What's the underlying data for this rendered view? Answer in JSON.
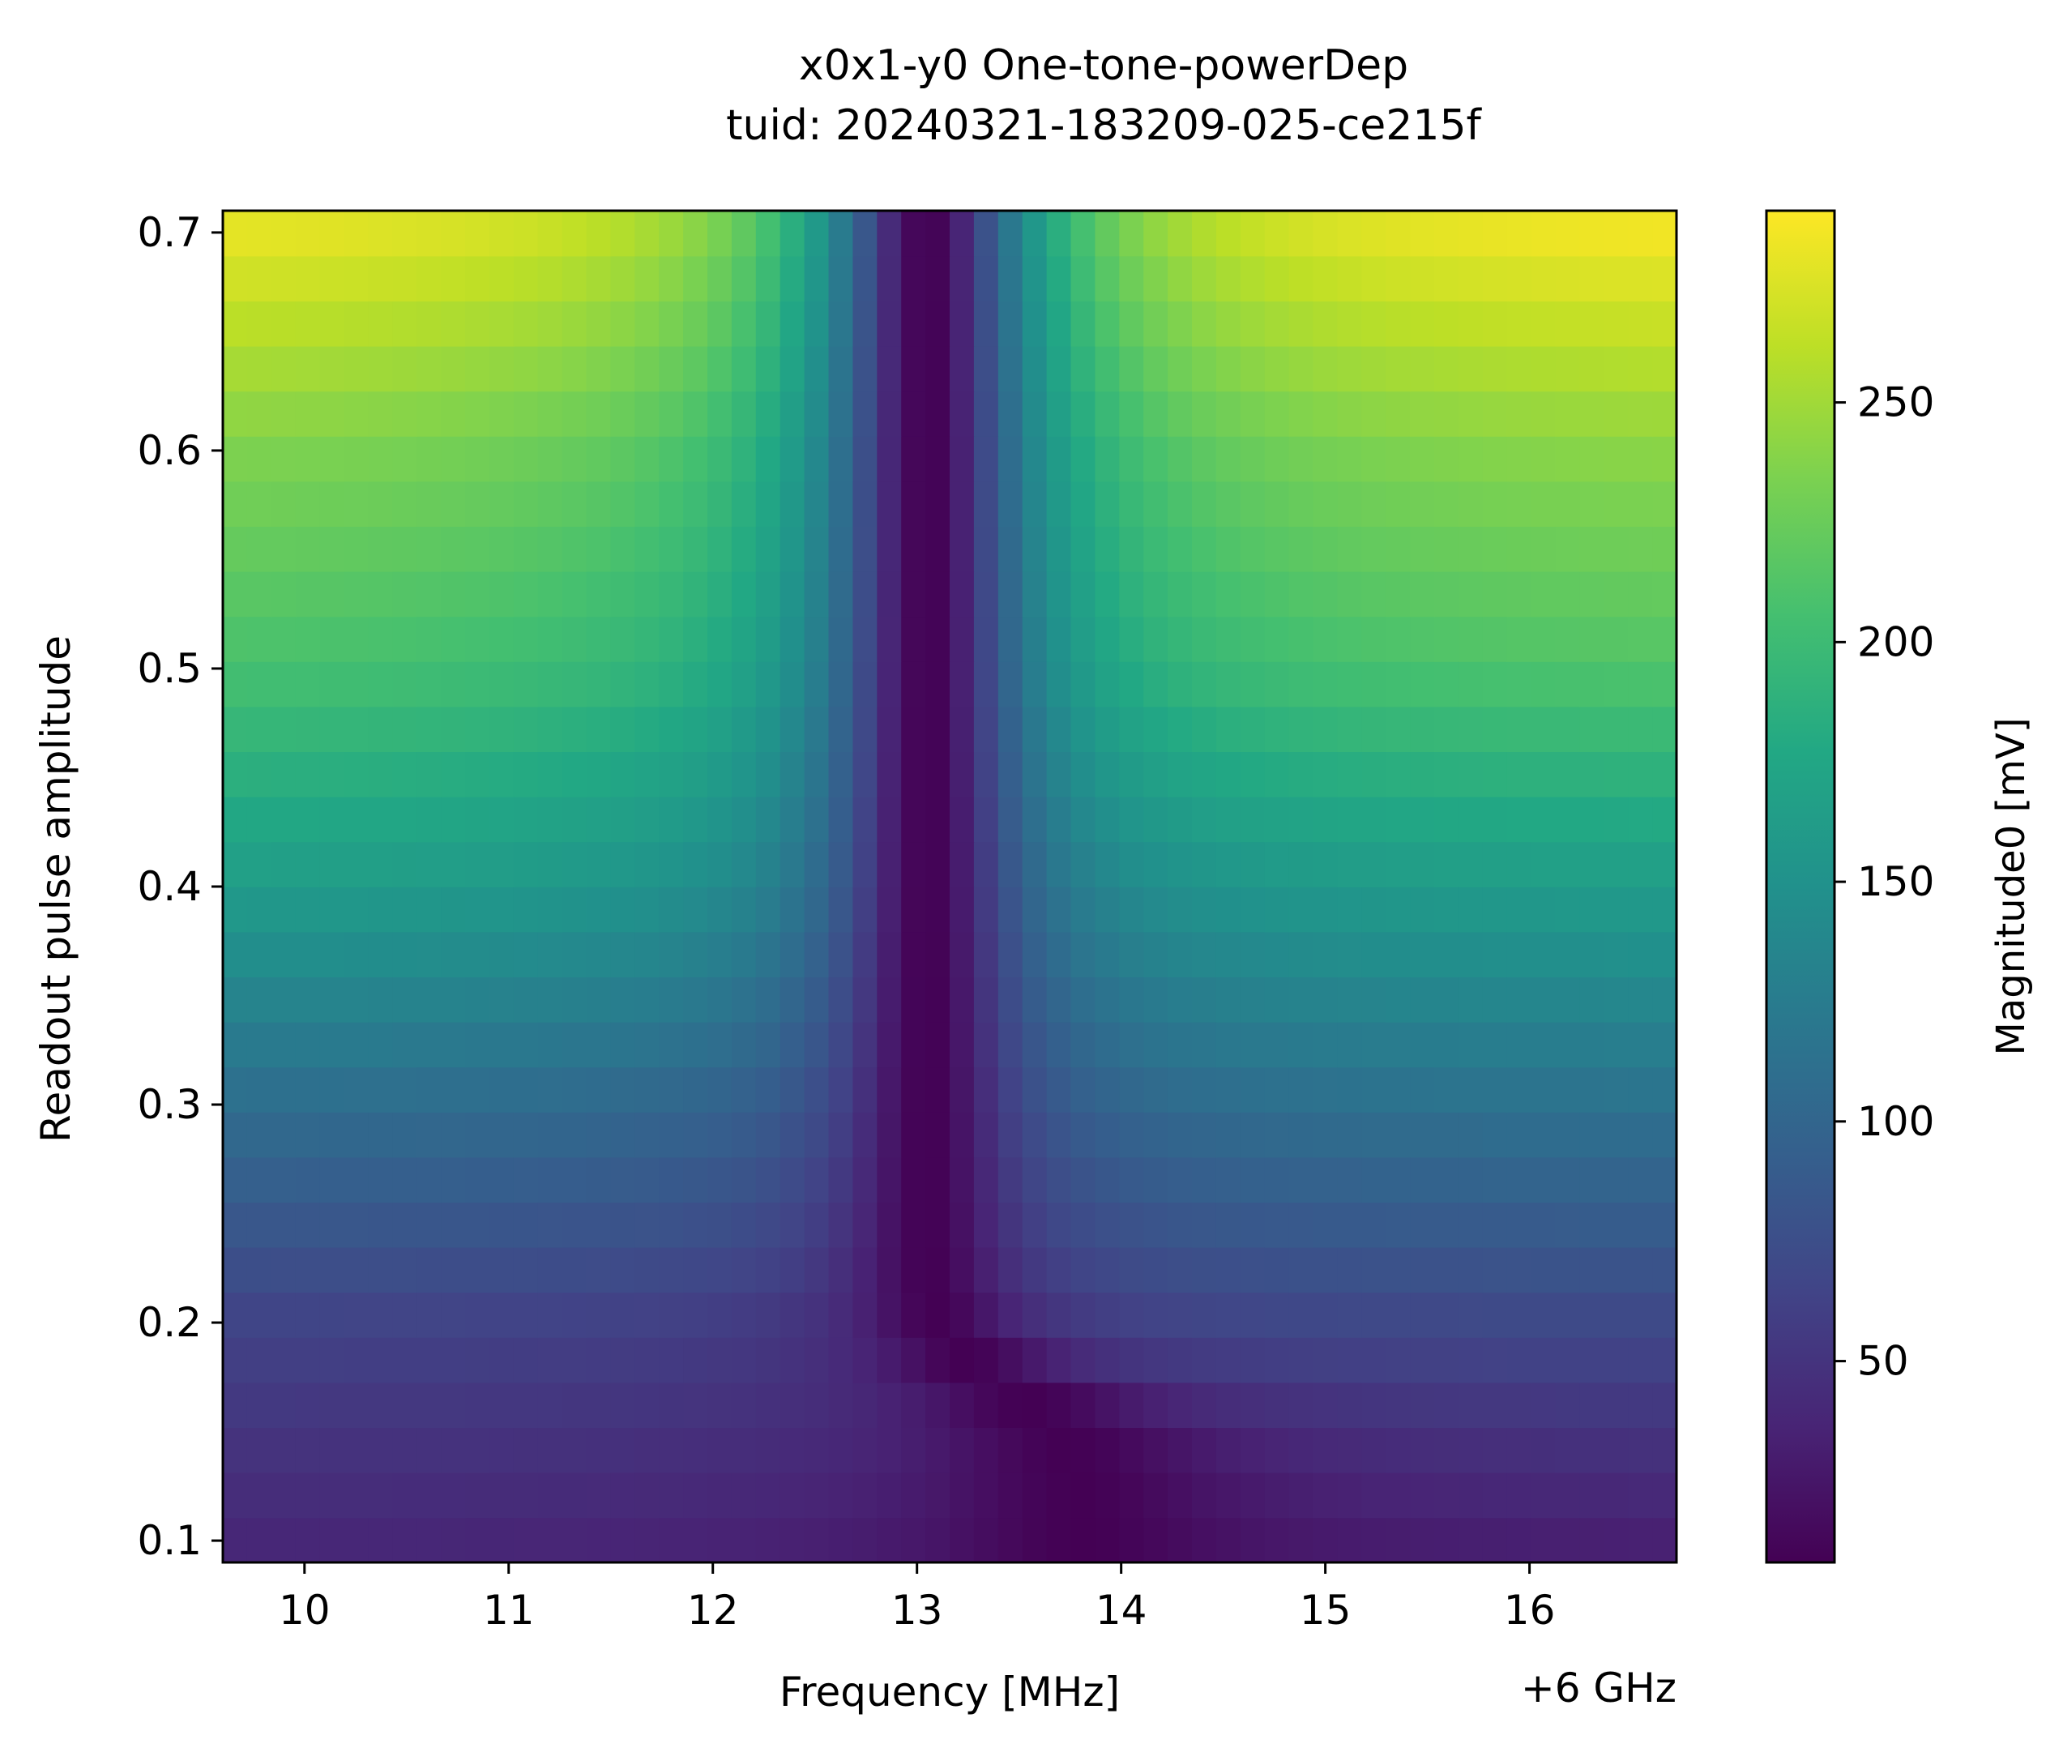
{
  "chart_data": {
    "type": "heatmap",
    "title": "x0x1-y0 One-tone-powerDep",
    "subtitle": "tuid: 20240321-183209-025-ce215f",
    "xlabel": "Frequency [MHz]",
    "x_offset_label": "+6 GHz",
    "ylabel": "Readout pulse amplitude",
    "colorbar_label": "Magnitude0 [mV]",
    "colormap": "viridis",
    "xlim": [
      9.6,
      16.72
    ],
    "ylim": [
      0.09,
      0.71
    ],
    "x_ticks": [
      "10",
      "11",
      "12",
      "13",
      "14",
      "15",
      "16"
    ],
    "y_ticks": [
      "0.1",
      "0.2",
      "0.3",
      "0.4",
      "0.5",
      "0.6",
      "0.7"
    ],
    "colorbar_ticks": [
      "50",
      "100",
      "150",
      "200",
      "250"
    ],
    "clim": [
      8,
      290
    ],
    "x_range": [
      9.6,
      16.72
    ],
    "x_count": 60,
    "y_range": [
      0.09,
      0.71
    ],
    "y_count": 30,
    "resonance": {
      "center_low_amp": 13.8,
      "center_high_amp": 13.05,
      "transition_amp": 0.17,
      "min_magnitude": 8
    },
    "edge_magnitude": [
      {
        "amplitude": 0.1,
        "left": 40,
        "right": 35
      },
      {
        "amplitude": 0.2,
        "left": 65,
        "right": 70
      },
      {
        "amplitude": 0.3,
        "left": 110,
        "right": 115
      },
      {
        "amplitude": 0.4,
        "left": 165,
        "right": 165
      },
      {
        "amplitude": 0.5,
        "left": 210,
        "right": 215
      },
      {
        "amplitude": 0.6,
        "left": 240,
        "right": 245
      },
      {
        "amplitude": 0.7,
        "left": 285,
        "right": 290
      }
    ]
  }
}
